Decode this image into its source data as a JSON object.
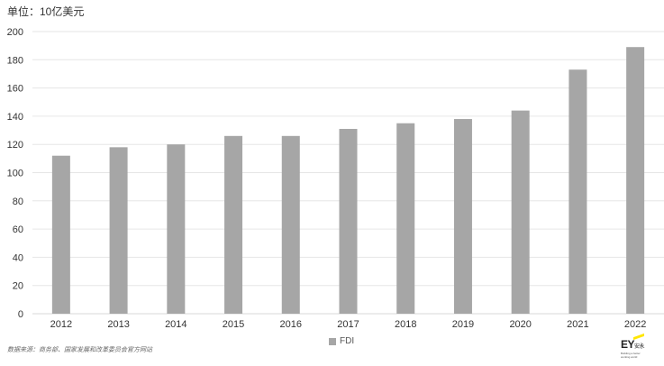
{
  "unit_label": "单位：10亿美元",
  "source": "数据来源：商务部、国家发展和改革委员会官方网站",
  "logo": {
    "mark": "EY",
    "cn": "安永",
    "tagline": "Building a better working world"
  },
  "colors": {
    "bar": "#a6a6a6",
    "grid": "#e6e6e6",
    "axis": "#d9d9d9"
  },
  "chart_data": {
    "type": "bar",
    "categories": [
      "2012",
      "2013",
      "2014",
      "2015",
      "2016",
      "2017",
      "2018",
      "2019",
      "2020",
      "2021",
      "2022"
    ],
    "series": [
      {
        "name": "FDI",
        "values": [
          112,
          118,
          120,
          126,
          126,
          131,
          135,
          138,
          144,
          173,
          189
        ]
      }
    ],
    "ylim": [
      0,
      200
    ],
    "yticks": [
      0,
      20,
      40,
      60,
      80,
      100,
      120,
      140,
      160,
      180,
      200
    ],
    "grid": true,
    "legend": "bottom-center"
  }
}
